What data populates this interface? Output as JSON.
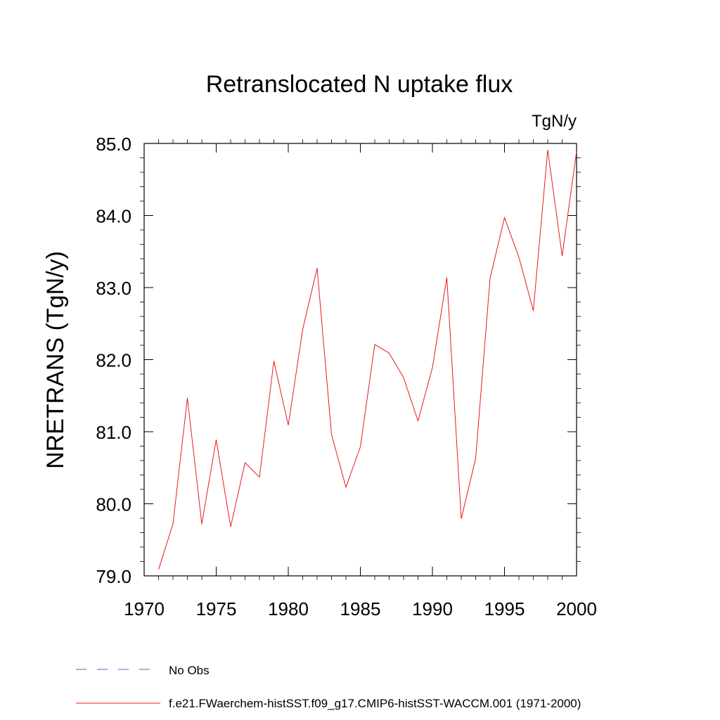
{
  "chart_data": {
    "type": "line",
    "title": "Retranslocated N uptake flux",
    "units_label": "TgN/y",
    "ylabel": "NRETRANS  (TgN/y)",
    "xlabel": "",
    "xlim": [
      1970,
      2000
    ],
    "ylim": [
      79.0,
      85.0
    ],
    "x_ticks": [
      1970,
      1975,
      1980,
      1985,
      1990,
      1995,
      2000
    ],
    "y_ticks": [
      "79.0",
      "80.0",
      "81.0",
      "82.0",
      "83.0",
      "84.0",
      "85.0"
    ],
    "grid": false,
    "legend_placement": "bottom",
    "legend": [
      {
        "label": "No Obs",
        "color": "#6a5acd",
        "style": "dashed"
      },
      {
        "label": "f.e21.FWaerchem-histSST.f09_g17.CMIP6-histSST-WACCM.001 (1971-2000)",
        "color": "#e8191c",
        "style": "solid"
      }
    ],
    "series": [
      {
        "name": "f.e21.FWaerchem-histSST.f09_g17.CMIP6-histSST-WACCM.001 (1971-2000)",
        "color": "#e8191c",
        "x": [
          1971,
          1972,
          1973,
          1974,
          1975,
          1976,
          1977,
          1978,
          1979,
          1980,
          1981,
          1982,
          1983,
          1984,
          1985,
          1986,
          1987,
          1988,
          1989,
          1990,
          1991,
          1992,
          1993,
          1994,
          1995,
          1996,
          1997,
          1998,
          1999,
          2000
        ],
        "values": [
          79.09,
          79.72,
          81.47,
          79.72,
          80.89,
          79.68,
          80.57,
          80.37,
          81.98,
          81.09,
          82.42,
          83.27,
          80.96,
          80.23,
          80.79,
          82.21,
          82.09,
          81.75,
          81.15,
          81.89,
          83.14,
          79.79,
          80.63,
          83.13,
          83.97,
          83.42,
          82.68,
          84.91,
          83.44,
          84.89
        ]
      }
    ]
  }
}
